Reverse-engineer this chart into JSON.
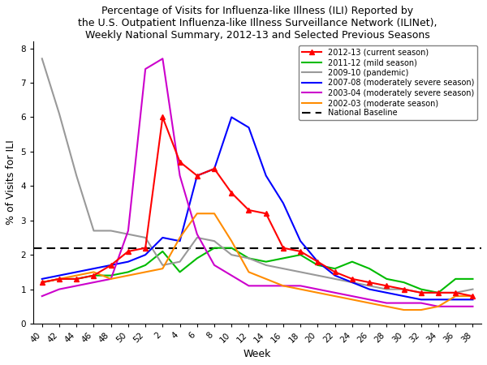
{
  "title": "Percentage of Visits for Influenza-like Illness (ILI) Reported by\nthe U.S. Outpatient Influenza-like Illness Surveillance Network (ILINet),\nWeekly National Summary, 2012-13 and Selected Previous Seasons",
  "xlabel": "Week",
  "ylabel": "% of Visits for ILI",
  "ylim": [
    0,
    8.2
  ],
  "yticks": [
    0,
    1,
    2,
    3,
    4,
    5,
    6,
    7,
    8
  ],
  "xtick_labels": [
    "40",
    "42",
    "44",
    "46",
    "48",
    "50",
    "52",
    "2",
    "4",
    "6",
    "8",
    "10",
    "12",
    "14",
    "16",
    "18",
    "20",
    "22",
    "24",
    "26",
    "28",
    "30",
    "32",
    "34",
    "36",
    "38"
  ],
  "national_baseline": 2.2,
  "seasons": {
    "2012-13 (current season)": {
      "color": "#FF0000",
      "marker": "^",
      "lw": 1.5,
      "values": [
        1.2,
        1.3,
        1.3,
        1.4,
        1.7,
        2.1,
        2.2,
        6.0,
        4.7,
        4.3,
        4.5,
        3.8,
        3.3,
        3.2,
        2.2,
        2.1,
        1.8,
        1.5,
        1.3,
        1.2,
        1.1,
        1.0,
        0.9,
        0.9,
        0.9,
        0.8
      ]
    },
    "2011-12 (mild season)": {
      "color": "#00BB00",
      "marker": null,
      "lw": 1.5,
      "values": [
        1.2,
        1.3,
        1.3,
        1.4,
        1.4,
        1.5,
        1.7,
        2.1,
        1.5,
        1.9,
        2.2,
        2.2,
        1.9,
        1.8,
        1.9,
        2.0,
        1.7,
        1.6,
        1.8,
        1.6,
        1.3,
        1.2,
        1.0,
        0.9,
        1.3,
        1.3
      ]
    },
    "2009-10 (pandemic)": {
      "color": "#999999",
      "marker": null,
      "lw": 1.5,
      "values": [
        7.7,
        6.1,
        4.3,
        2.7,
        2.7,
        2.6,
        2.5,
        1.7,
        1.8,
        2.5,
        2.4,
        2.0,
        1.9,
        1.7,
        1.6,
        1.5,
        1.4,
        1.3,
        1.2,
        1.1,
        1.0,
        1.0,
        0.9,
        0.9,
        0.9,
        1.0
      ]
    },
    "2007-08 (moderately severe season)": {
      "color": "#0000FF",
      "marker": null,
      "lw": 1.5,
      "values": [
        1.3,
        1.4,
        1.5,
        1.6,
        1.7,
        1.8,
        2.0,
        2.5,
        2.4,
        4.3,
        4.5,
        6.0,
        5.7,
        4.3,
        3.5,
        2.4,
        1.8,
        1.4,
        1.2,
        1.0,
        0.9,
        0.8,
        0.7,
        0.7,
        0.7,
        0.7
      ]
    },
    "2003-04 (moderately severe season)": {
      "color": "#CC00CC",
      "marker": null,
      "lw": 1.5,
      "values": [
        0.8,
        1.0,
        1.1,
        1.2,
        1.3,
        2.7,
        7.4,
        7.7,
        4.3,
        2.6,
        1.7,
        1.4,
        1.1,
        1.1,
        1.1,
        1.1,
        1.0,
        0.9,
        0.8,
        0.7,
        0.6,
        0.6,
        0.6,
        0.5,
        0.5,
        0.5
      ]
    },
    "2002-03 (moderate season)": {
      "color": "#FF8C00",
      "marker": null,
      "lw": 1.5,
      "values": [
        1.2,
        1.3,
        1.4,
        1.5,
        1.3,
        1.4,
        1.5,
        1.6,
        2.5,
        3.2,
        3.2,
        2.4,
        1.5,
        1.3,
        1.1,
        1.0,
        0.9,
        0.8,
        0.7,
        0.6,
        0.5,
        0.4,
        0.4,
        0.5,
        0.8,
        0.8
      ]
    }
  },
  "background_color": "#FFFFFF",
  "title_fontsize": 9.0,
  "axis_label_fontsize": 9,
  "tick_fontsize": 7.5,
  "legend_fontsize": 7.0
}
